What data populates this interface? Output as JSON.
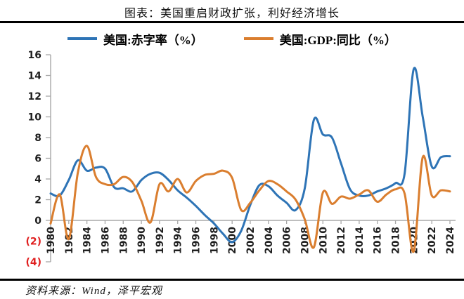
{
  "header": {
    "title": "图表：美国重启财政扩张，利好经济增长"
  },
  "legend": {
    "items": [
      {
        "label": "美国:赤字率（%）",
        "color": "#2E74B6"
      },
      {
        "label": "美国:GDP:同比（%）",
        "color": "#DA7E2F"
      }
    ]
  },
  "chart_data": {
    "type": "line",
    "title": "图表：美国重启财政扩张，利好经济增长",
    "line_style": "smooth",
    "grid": false,
    "legend_position": "top",
    "x": [
      1980,
      1981,
      1982,
      1983,
      1984,
      1985,
      1986,
      1987,
      1988,
      1989,
      1990,
      1991,
      1992,
      1993,
      1994,
      1995,
      1996,
      1997,
      1998,
      1999,
      2000,
      2001,
      2002,
      2003,
      2004,
      2005,
      2006,
      2007,
      2008,
      2009,
      2010,
      2011,
      2012,
      2013,
      2014,
      2015,
      2016,
      2017,
      2018,
      2019,
      2020,
      2021,
      2022,
      2023,
      2024
    ],
    "series": [
      {
        "name": "美国:赤字率（%）",
        "color": "#2E74B6",
        "values": [
          2.6,
          2.4,
          3.9,
          5.8,
          4.8,
          5.1,
          5.0,
          3.2,
          3.1,
          2.8,
          3.9,
          4.5,
          4.6,
          3.9,
          2.9,
          2.2,
          1.4,
          0.5,
          -0.3,
          -1.3,
          -2.1,
          -1.0,
          1.5,
          3.4,
          3.3,
          2.4,
          1.7,
          1.0,
          3.1,
          9.7,
          8.3,
          8.0,
          5.5,
          3.0,
          2.4,
          2.4,
          2.8,
          3.1,
          3.6,
          4.5,
          14.6,
          10.0,
          5.2,
          6.1,
          6.2
        ]
      },
      {
        "name": "美国:GDP:同比（%）",
        "color": "#DA7E2F",
        "values": [
          -0.3,
          2.5,
          -1.8,
          4.6,
          7.2,
          4.2,
          3.5,
          3.5,
          4.2,
          3.7,
          1.9,
          -0.2,
          3.5,
          2.8,
          4.0,
          2.7,
          3.8,
          4.4,
          4.5,
          4.8,
          4.1,
          1.0,
          1.7,
          2.9,
          3.8,
          3.5,
          2.8,
          2.0,
          0.1,
          -2.6,
          2.7,
          1.6,
          2.3,
          2.1,
          2.5,
          2.9,
          1.8,
          2.5,
          3.0,
          2.6,
          -3.0,
          6.1,
          2.4,
          2.9,
          2.8
        ]
      }
    ],
    "ylim": [
      -4,
      16
    ],
    "y_ticks": [
      16,
      14,
      12,
      10,
      8,
      6,
      4,
      2,
      0,
      -2,
      -4
    ],
    "y_tick_labels": [
      "16",
      "14",
      "12",
      "10",
      "8",
      "6",
      "4",
      "2",
      "0",
      "(2)",
      "(4)"
    ],
    "x_tick_labels": [
      "1980",
      "1982",
      "1984",
      "1986",
      "1988",
      "1990",
      "1992",
      "1994",
      "1996",
      "1998",
      "2000",
      "2002",
      "2004",
      "2006",
      "2008",
      "2010",
      "2012",
      "2014",
      "2016",
      "2018",
      "2020",
      "2022",
      "2024"
    ],
    "tick_label_color": "#1f1f1f",
    "negative_tick_color": "#e02020",
    "axis_color": "#a8a8a8"
  },
  "footer": {
    "source": "资料来源：Wind，泽平宏观"
  }
}
